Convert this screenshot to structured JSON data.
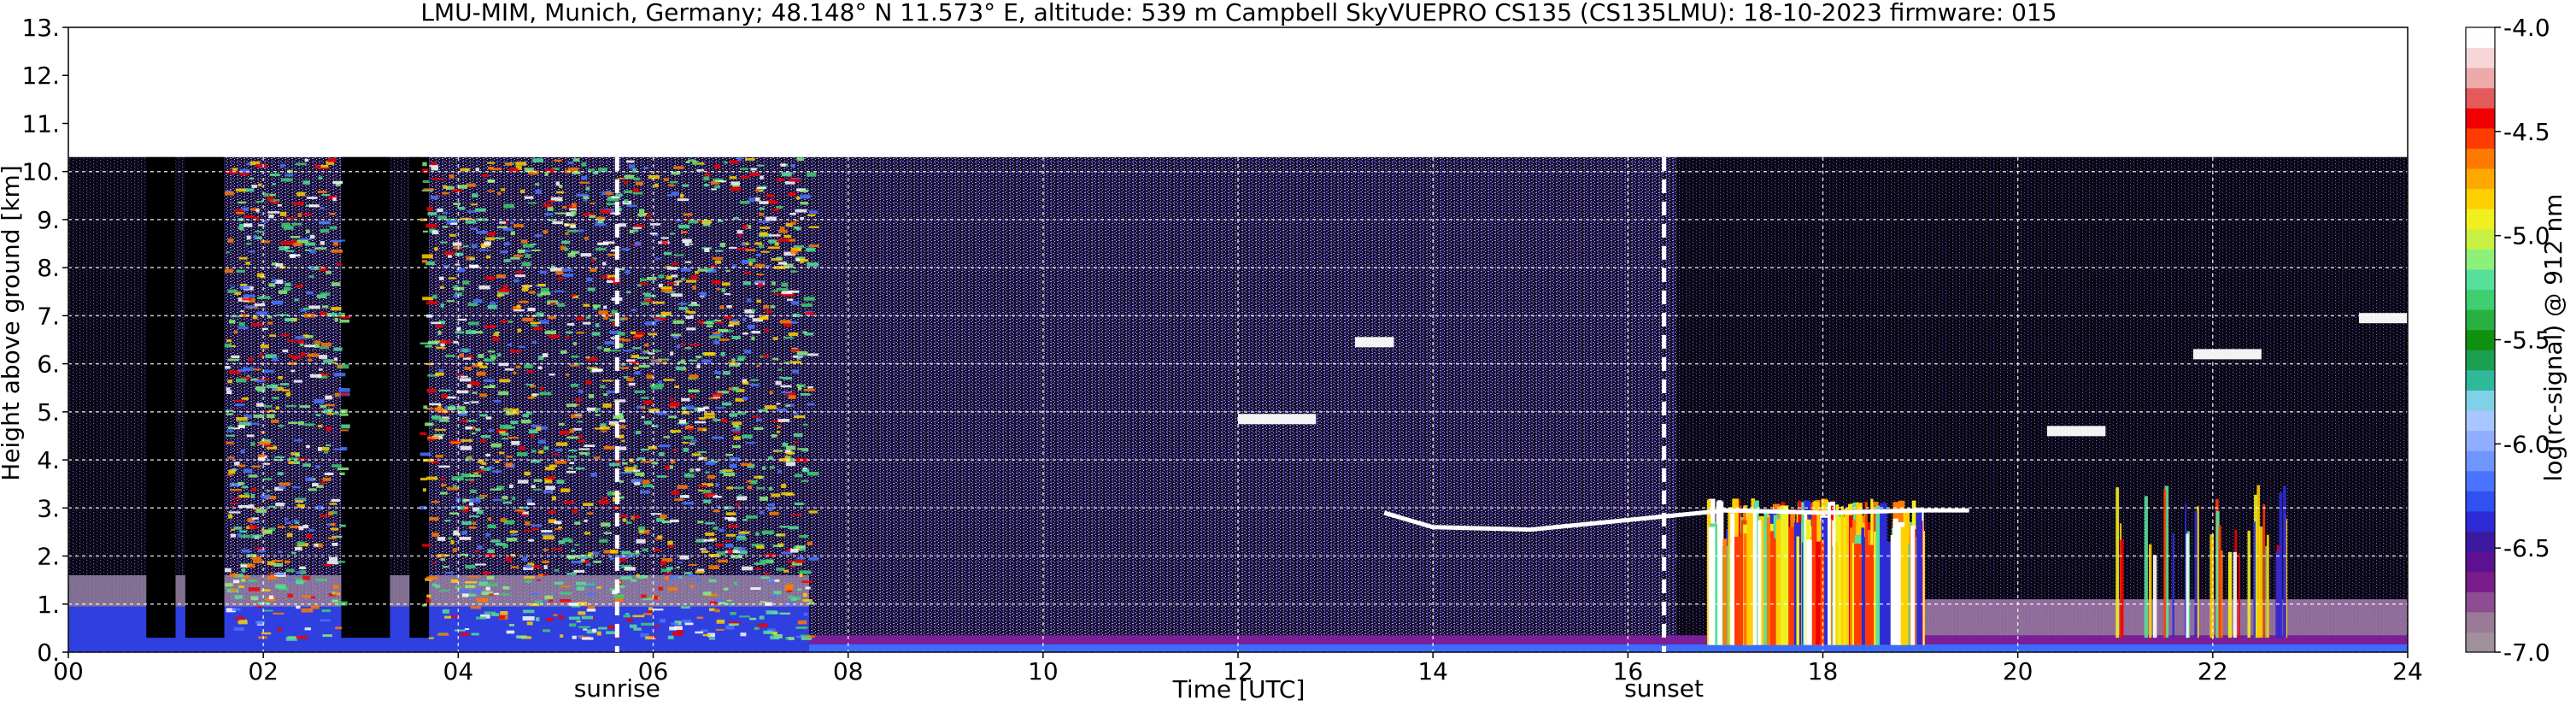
{
  "chart_data": {
    "type": "heatmap",
    "title": "LMU-MIM, Munich, Germany; 48.148° N 11.573° E, altitude: 539 m    Campbell SkyVUEPRO CS135 (CS135LMU): 18-10-2023    firmware: 015",
    "xlabel": "Time [UTC]",
    "ylabel": "Height above ground [km]",
    "xlim": [
      0,
      24
    ],
    "ylim": [
      0,
      13
    ],
    "x_ticks": [
      "00",
      "02",
      "04",
      "06",
      "08",
      "10",
      "12",
      "14",
      "16",
      "18",
      "20",
      "22",
      "24"
    ],
    "y_ticks": [
      "0.",
      "1.",
      "2.",
      "3.",
      "4.",
      "5.",
      "6.",
      "7.",
      "8.",
      "9.",
      "10.",
      "11.",
      "12.",
      "13."
    ],
    "grid": true,
    "data_top_km": 10.3,
    "colorbar": {
      "label": "log(rc-signal) @ 912 nm",
      "range": [
        -7.0,
        -4.0
      ],
      "ticks": [
        "-4.0",
        "-4.5",
        "-5.0",
        "-5.5",
        "-6.0",
        "-6.5",
        "-7.0"
      ],
      "colors": [
        "#a0909c",
        "#9b7a98",
        "#8e4c93",
        "#7a1d8a",
        "#5c1290",
        "#3b1aa0",
        "#2d2bd6",
        "#3050f0",
        "#4a74ff",
        "#6f95ff",
        "#90aeff",
        "#a8c6ff",
        "#80d0e8",
        "#2fb89a",
        "#1aa050",
        "#109010",
        "#28b040",
        "#3fce70",
        "#56e09a",
        "#8cf07a",
        "#c8f040",
        "#f0f020",
        "#ffd000",
        "#ffa800",
        "#ff7a00",
        "#ff3c00",
        "#f00000",
        "#e45a5a",
        "#eeaaaa",
        "#f6d6d6",
        "#fefefe"
      ]
    },
    "annotations": [
      {
        "text": "sunrise",
        "x": 5.63
      },
      {
        "text": "sunset",
        "x": 16.37
      }
    ],
    "features": {
      "high_cloud_x_range": [
        1.6,
        7.6
      ],
      "low_cloud_x_range": [
        16.8,
        19.0
      ],
      "cloud_base_line_km": [
        [
          13.5,
          2.9
        ],
        [
          14.0,
          2.6
        ],
        [
          15.0,
          2.55
        ],
        [
          16.0,
          2.75
        ],
        [
          17.0,
          2.95
        ],
        [
          18.0,
          2.9
        ],
        [
          19.0,
          2.95
        ],
        [
          19.5,
          2.95
        ]
      ],
      "elevated_layers": [
        {
          "x0": 12.0,
          "x1": 12.8,
          "km": 4.85
        },
        {
          "x0": 13.2,
          "x1": 13.6,
          "km": 6.45
        },
        {
          "x0": 20.3,
          "x1": 20.9,
          "km": 4.6
        },
        {
          "x0": 21.8,
          "x1": 22.5,
          "km": 6.2
        },
        {
          "x0": 23.5,
          "x1": 24.0,
          "km": 6.95
        }
      ],
      "gaps_x": [
        [
          0.8,
          1.1
        ],
        [
          1.2,
          1.6
        ],
        [
          2.8,
          3.3
        ],
        [
          3.5,
          3.7
        ]
      ]
    }
  }
}
